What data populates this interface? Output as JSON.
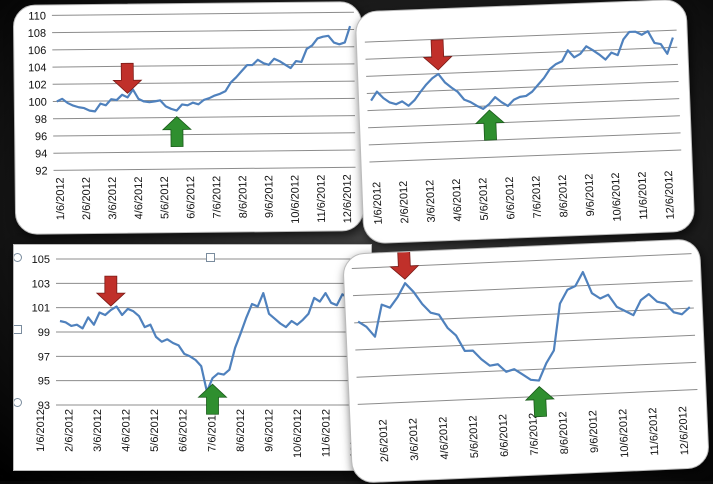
{
  "chart_data": [
    {
      "id": "top-left",
      "type": "line",
      "y_ticks": [
        92,
        94,
        96,
        98,
        100,
        102,
        104,
        106,
        108,
        110
      ],
      "x_ticks": [
        "1/6/2012",
        "2/6/2012",
        "3/6/2012",
        "4/6/2012",
        "5/6/2012",
        "6/6/2012",
        "7/6/2012",
        "8/6/2012",
        "9/6/2012",
        "10/6/2012",
        "11/6/2012",
        "12/6/2012"
      ],
      "ylim": [
        92,
        110
      ],
      "grid": true,
      "series": [
        {
          "values": [
            100,
            100.3,
            99.8,
            99.5,
            99.3,
            99.2,
            98.9,
            98.8,
            99.7,
            99.5,
            100.2,
            100.1,
            100.7,
            100.4,
            101.3,
            100.2,
            99.9,
            99.8,
            99.9,
            100,
            99.3,
            99,
            98.8,
            99.5,
            99.4,
            99.7,
            99.5,
            100,
            100.2,
            100.5,
            100.7,
            101,
            102,
            102.6,
            103.3,
            104,
            104,
            104.6,
            104.2,
            104,
            104.7,
            104.4,
            104,
            103.6,
            104.4,
            104.3,
            105.8,
            106.2,
            107,
            107.2,
            107.3,
            106.5,
            106.3,
            106.5,
            108.4
          ]
        }
      ],
      "down_arrow_index": 13,
      "up_arrow_index": 22,
      "colors": {
        "line": "#4f81bd",
        "down_arrow": "#c0302a",
        "up_arrow": "#2f8f2f"
      }
    },
    {
      "id": "top-right",
      "type": "line",
      "y_ticks": [],
      "x_ticks": [
        "1/6/2012",
        "2/6/2012",
        "3/6/2012",
        "4/6/2012",
        "5/6/2012",
        "6/6/2012",
        "7/6/2012",
        "8/6/2012",
        "9/6/2012",
        "10/6/2012",
        "11/6/2012",
        "12/6/2012"
      ],
      "ylim": [
        92,
        110
      ],
      "grid": true,
      "series": [
        {
          "values": [
            101.2,
            102.5,
            101.5,
            100.8,
            100.5,
            100.9,
            100.2,
            101,
            102.2,
            103.3,
            104.2,
            104.8,
            103.5,
            102.7,
            102,
            100.8,
            100.4,
            99.8,
            99.3,
            100,
            101,
            100.2,
            99.6,
            100.5,
            100.9,
            101,
            101.6,
            102.6,
            103.6,
            104.9,
            105.6,
            106,
            107.6,
            106.5,
            107,
            108.1,
            107.5,
            106.8,
            106,
            107,
            106.6,
            108.9,
            110,
            110,
            109.5,
            110,
            108.2,
            108,
            106.5,
            108.9
          ]
        }
      ],
      "down_arrow_index": 11,
      "up_arrow_index": 19,
      "colors": {
        "line": "#4f81bd",
        "down_arrow": "#c0302a",
        "up_arrow": "#2f8f2f"
      }
    },
    {
      "id": "bottom-left",
      "type": "line",
      "y_ticks": [
        93,
        95,
        97,
        99,
        101,
        103,
        105
      ],
      "x_ticks": [
        "1/6/2012",
        "2/6/2012",
        "3/6/2012",
        "4/6/2012",
        "5/6/2012",
        "6/6/2012",
        "7/6/2012",
        "8/6/2012",
        "9/6/2012",
        "10/6/2012",
        "11/6/2012",
        "12/6/2012"
      ],
      "ylim": [
        93,
        105
      ],
      "grid": true,
      "series": [
        {
          "values": [
            99.9,
            99.8,
            99.5,
            99.6,
            99.3,
            100.2,
            99.6,
            100.6,
            100.4,
            100.8,
            101.1,
            100.4,
            100.9,
            100.7,
            100.3,
            99.4,
            99.6,
            98.6,
            98.2,
            98.4,
            98.1,
            97.9,
            97.2,
            97,
            96.7,
            96.2,
            94.1,
            95.2,
            95.6,
            95.5,
            95.9,
            97.7,
            98.9,
            100.2,
            101.3,
            101.1,
            102.2,
            100.5,
            100.1,
            99.7,
            99.4,
            99.9,
            99.6,
            100,
            100.5,
            101.8,
            101.5,
            102.2,
            101.4,
            101.2,
            102.1,
            101.8,
            101.3,
            102.2,
            103
          ]
        }
      ],
      "down_arrow_index": 9,
      "up_arrow_index": 27,
      "colors": {
        "line": "#4f81bd",
        "down_arrow": "#c0302a",
        "up_arrow": "#2f8f2f"
      }
    },
    {
      "id": "bottom-right",
      "type": "line",
      "y_ticks": [],
      "x_ticks": [
        "2/6/2012",
        "3/6/2012",
        "4/6/2012",
        "5/6/2012",
        "6/6/2012",
        "7/6/2012",
        "8/6/2012",
        "9/6/2012",
        "10/6/2012",
        "11/6/2012",
        "12/6/2012"
      ],
      "ylim": [
        93,
        105
      ],
      "grid": true,
      "series": [
        {
          "values": [
            100.3,
            99.8,
            98.9,
            101.7,
            101.4,
            102.3,
            103.5,
            102.7,
            101.6,
            100.8,
            100.6,
            99.4,
            98.7,
            97.3,
            97.3,
            96.5,
            95.9,
            96,
            95.3,
            95.5,
            95,
            94.5,
            94.4,
            95.9,
            97,
            101.1,
            102.3,
            102.6,
            103.8,
            101.9,
            101.4,
            101.7,
            100.6,
            100.2,
            99.8,
            101.1,
            101.6,
            100.9,
            100.7,
            99.9,
            99.7,
            100.3
          ]
        }
      ],
      "down_arrow_index": 6,
      "up_arrow_index": 22,
      "colors": {
        "line": "#4f81bd",
        "down_arrow": "#c0302a",
        "up_arrow": "#2f8f2f"
      }
    }
  ]
}
